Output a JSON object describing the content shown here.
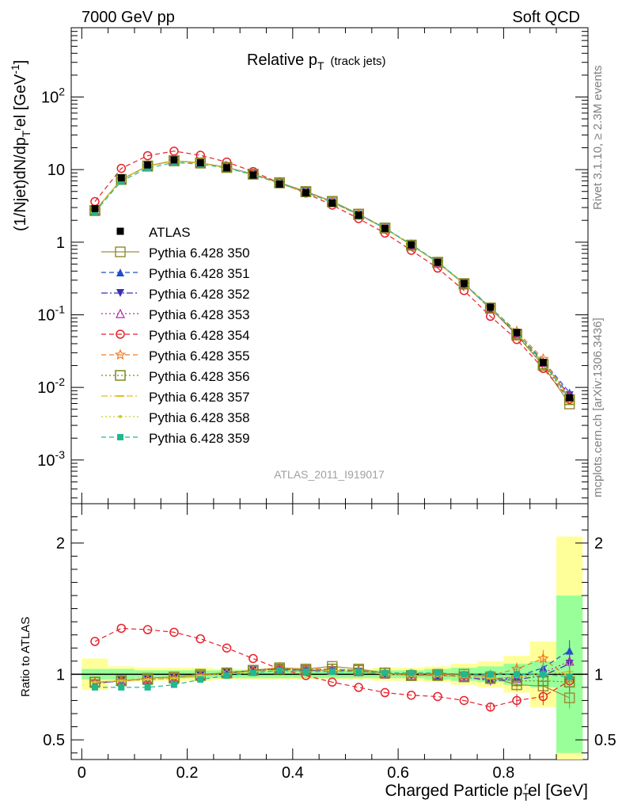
{
  "header": {
    "left": "7000 GeV pp",
    "right": "Soft QCD"
  },
  "title": {
    "main": "Relative p",
    "main_sub": "T",
    "suffix": "(track jets)"
  },
  "side_text": {
    "rivet": "Rivet 3.1.10, ≥ 2.3M events",
    "mcplots": "mcplots.cern.ch [arXiv:1306.3436]"
  },
  "analysis_id": "ATLAS_2011_I919017",
  "axes": {
    "main_ylabel": "(1/Njet)dN/dp",
    "main_ylabel_sub": "T",
    "main_ylabel_sup": "r",
    "main_ylabel_rest": "el [GeV",
    "main_ylabel_unit_sup": "-1",
    "main_ylabel_close": "]",
    "ratio_ylabel": "Ratio to ATLAS",
    "xlabel_pre": "Charged Particle p",
    "xlabel_sub": "T",
    "xlabel_sup": "r",
    "xlabel_post": "el [GeV]"
  },
  "chart_data": {
    "type": "line",
    "title": "Relative pT (track jets)",
    "xlabel": "Charged Particle pT^rel [GeV]",
    "ylabel": "(1/Njet)dN/dpT^rel [GeV^-1]",
    "yscale": "log",
    "xlim": [
      -0.02,
      0.96
    ],
    "ylim": [
      0.00025,
      900
    ],
    "ratio_ylim": [
      0.35,
      2.3
    ],
    "x_ticks": [
      "0",
      "0.2",
      "0.4",
      "0.6",
      "0.8"
    ],
    "y_ticks": [
      "10^-3",
      "10^-2",
      "10^-1",
      "1",
      "10",
      "10^2"
    ],
    "ratio_ticks": [
      "0.5",
      "1",
      "2"
    ],
    "x": [
      0.025,
      0.075,
      0.125,
      0.175,
      0.225,
      0.275,
      0.325,
      0.375,
      0.425,
      0.475,
      0.525,
      0.575,
      0.625,
      0.675,
      0.725,
      0.775,
      0.825,
      0.875,
      0.925
    ],
    "data": {
      "name": "ATLAS",
      "values": [
        2.9,
        7.7,
        11.6,
        13.6,
        12.4,
        10.6,
        8.4,
        6.3,
        4.8,
        3.45,
        2.35,
        1.55,
        0.92,
        0.53,
        0.27,
        0.127,
        0.057,
        0.022,
        0.0072
      ],
      "band_inner": [
        0.04,
        0.04,
        0.03,
        0.03,
        0.03,
        0.03,
        0.03,
        0.03,
        0.03,
        0.03,
        0.03,
        0.03,
        0.03,
        0.04,
        0.05,
        0.06,
        0.08,
        0.1,
        0.6
      ],
      "band_outer": [
        0.12,
        0.06,
        0.05,
        0.05,
        0.05,
        0.04,
        0.04,
        0.04,
        0.04,
        0.04,
        0.04,
        0.05,
        0.05,
        0.06,
        0.08,
        0.1,
        0.14,
        0.25,
        1.05
      ]
    },
    "series": [
      {
        "name": "Pythia 6.428 350",
        "color": "#9a8f3a",
        "marker": "square-open",
        "dash": "solid",
        "ratio": [
          0.94,
          0.95,
          0.97,
          0.98,
          1.0,
          1.01,
          1.03,
          1.05,
          1.04,
          1.06,
          1.04,
          1.01,
          0.99,
          1.0,
          1.0,
          0.98,
          0.92,
          0.91,
          0.82
        ]
      },
      {
        "name": "Pythia 6.428 351",
        "color": "#1f4fc7",
        "marker": "triangle-up",
        "dash": "6,4",
        "ratio": [
          0.93,
          0.95,
          0.96,
          0.97,
          0.99,
          1.01,
          1.03,
          1.04,
          1.03,
          1.03,
          1.03,
          1.01,
          1.0,
          0.99,
          0.99,
          0.96,
          0.98,
          1.05,
          1.18
        ]
      },
      {
        "name": "Pythia 6.428 352",
        "color": "#3b2fb0",
        "marker": "triangle-down",
        "dash": "8,3,2,3",
        "ratio": [
          0.93,
          0.95,
          0.96,
          0.97,
          0.99,
          1.01,
          1.03,
          1.04,
          1.03,
          1.03,
          1.02,
          1.0,
          0.99,
          0.99,
          0.98,
          0.95,
          0.96,
          0.99,
          1.08
        ]
      },
      {
        "name": "Pythia 6.428 353",
        "color": "#b22aa8",
        "marker": "triangle-open",
        "dash": "2,3",
        "ratio": [
          0.93,
          0.95,
          0.96,
          0.97,
          0.99,
          1.01,
          1.03,
          1.04,
          1.03,
          1.03,
          1.02,
          1.0,
          0.99,
          0.99,
          0.98,
          0.96,
          0.97,
          1.01,
          1.1
        ]
      },
      {
        "name": "Pythia 6.428 354",
        "color": "#e8202a",
        "marker": "circle-open",
        "dash": "6,4",
        "ratio": [
          1.25,
          1.35,
          1.34,
          1.32,
          1.27,
          1.2,
          1.12,
          1.04,
          0.99,
          0.94,
          0.9,
          0.86,
          0.84,
          0.83,
          0.8,
          0.75,
          0.8,
          0.83,
          0.95
        ]
      },
      {
        "name": "Pythia 6.428 355",
        "color": "#f07a20",
        "marker": "star-open",
        "dash": "6,4",
        "ratio": [
          0.94,
          0.95,
          0.96,
          0.97,
          0.99,
          1.01,
          1.03,
          1.05,
          1.04,
          1.04,
          1.03,
          1.01,
          1.0,
          1.0,
          0.99,
          0.99,
          1.04,
          1.12,
          0.97
        ]
      },
      {
        "name": "Pythia 6.428 356",
        "color": "#7a8a1a",
        "marker": "square-open",
        "dash": "2,3",
        "ratio": [
          0.94,
          0.95,
          0.96,
          0.97,
          0.99,
          1.01,
          1.03,
          1.04,
          1.03,
          1.04,
          1.03,
          1.01,
          0.99,
          0.99,
          0.98,
          0.97,
          0.95,
          0.95,
          0.94
        ]
      },
      {
        "name": "Pythia 6.428 357",
        "color": "#e0c020",
        "marker": "dash",
        "dash": "8,3,2,3",
        "ratio": [
          0.94,
          0.95,
          0.96,
          0.97,
          0.99,
          1.0,
          1.02,
          1.03,
          1.02,
          1.03,
          1.02,
          1.0,
          0.99,
          0.99,
          0.98,
          0.97,
          0.98,
          1.0,
          1.02
        ]
      },
      {
        "name": "Pythia 6.428 358",
        "color": "#c8d020",
        "marker": "dot",
        "dash": "2,3",
        "ratio": [
          0.94,
          0.95,
          0.96,
          0.97,
          0.99,
          1.0,
          1.02,
          1.03,
          1.02,
          1.03,
          1.02,
          1.0,
          0.99,
          0.99,
          0.98,
          0.97,
          0.98,
          1.01,
          1.0
        ]
      },
      {
        "name": "Pythia 6.428 359",
        "color": "#20b890",
        "marker": "square-filled",
        "dash": "6,4",
        "ratio": [
          0.9,
          0.9,
          0.9,
          0.92,
          0.96,
          0.99,
          1.01,
          1.03,
          1.02,
          1.02,
          1.02,
          1.01,
          1.01,
          1.01,
          1.0,
          1.0,
          1.0,
          1.0,
          0.98
        ]
      }
    ]
  }
}
